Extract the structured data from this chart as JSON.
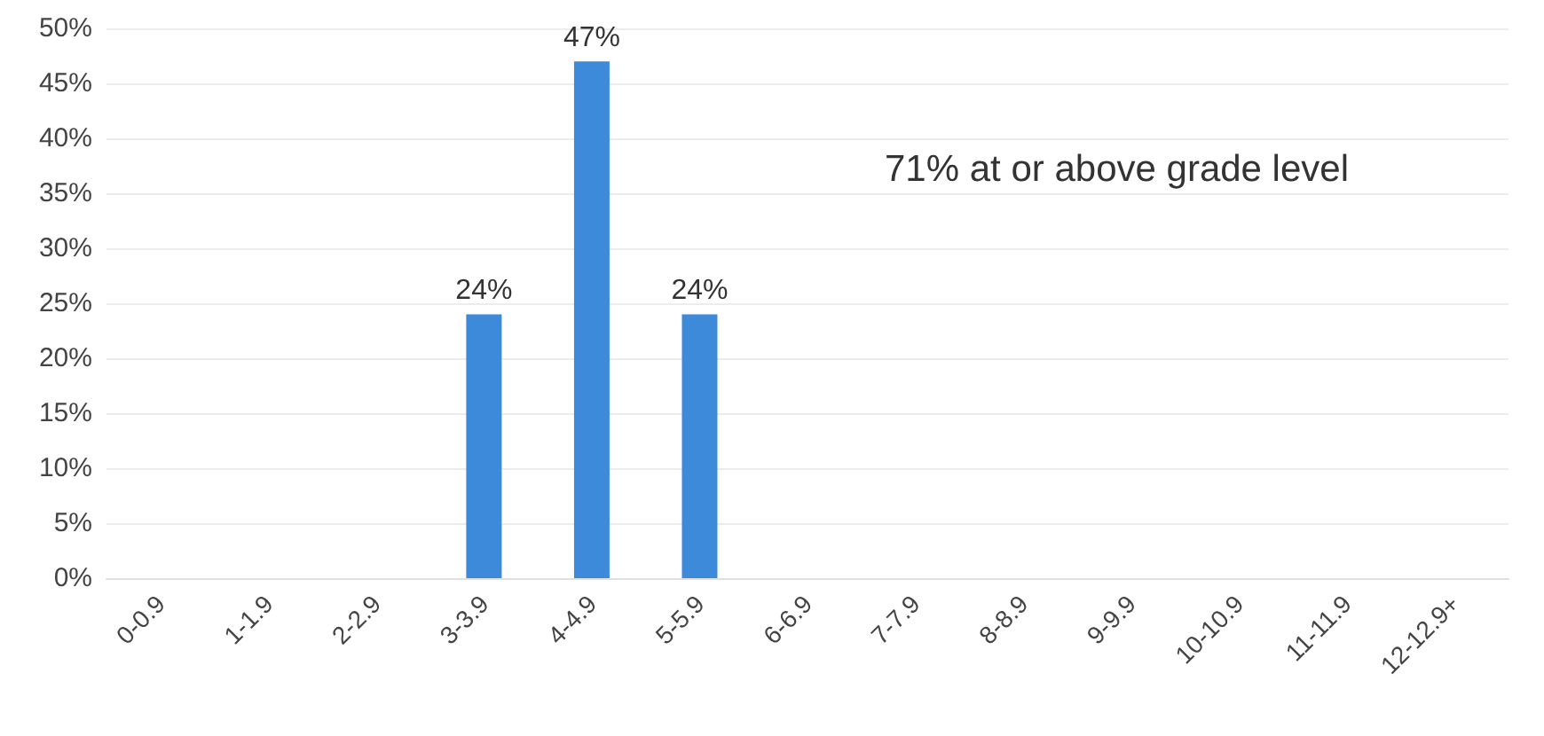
{
  "chart_data": {
    "type": "bar",
    "categories": [
      "0-0.9",
      "1-1.9",
      "2-2.9",
      "3-3.9",
      "4-4.9",
      "5-5.9",
      "6-6.9",
      "7-7.9",
      "8-8.9",
      "9-9.9",
      "10-10.9",
      "11-11.9",
      "12-12.9+"
    ],
    "values": [
      0,
      0,
      0,
      24,
      47,
      24,
      0,
      0,
      0,
      0,
      0,
      0,
      0
    ],
    "value_labels": [
      null,
      null,
      null,
      "24%",
      "47%",
      "24%",
      null,
      null,
      null,
      null,
      null,
      null,
      null
    ],
    "color": "#3c8ad9",
    "ylim": [
      0,
      50
    ],
    "yticks": [
      {
        "value": 0,
        "label": "0%"
      },
      {
        "value": 5,
        "label": "5%"
      },
      {
        "value": 10,
        "label": "10%"
      },
      {
        "value": 15,
        "label": "15%"
      },
      {
        "value": 20,
        "label": "20%"
      },
      {
        "value": 25,
        "label": "25%"
      },
      {
        "value": 30,
        "label": "30%"
      },
      {
        "value": 35,
        "label": "35%"
      },
      {
        "value": 40,
        "label": "40%"
      },
      {
        "value": 45,
        "label": "45%"
      },
      {
        "value": 50,
        "label": "50%"
      }
    ],
    "grid": "y",
    "annotations": [
      "71% at or above grade level"
    ]
  }
}
